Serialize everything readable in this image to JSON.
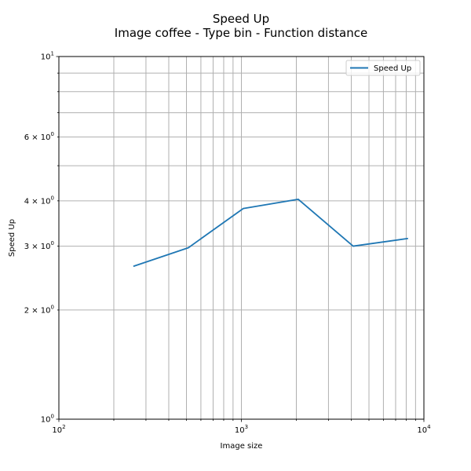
{
  "chart_data": {
    "type": "line",
    "title": "Speed Up",
    "subtitle": "Image coffee - Type bin - Function distance",
    "xlabel": "Image size",
    "ylabel": "Speed Up",
    "xscale": "log",
    "yscale": "log",
    "xlim": [
      100,
      10000
    ],
    "ylim": [
      1,
      10
    ],
    "grid": true,
    "legend_placement": "top-right",
    "x_major_ticks": [
      {
        "base": "10",
        "exp": "2"
      },
      {
        "base": "10",
        "exp": "3"
      },
      {
        "base": "10",
        "exp": "4"
      }
    ],
    "y_major_ticks": [
      {
        "base": "10",
        "exp": "0",
        "value": 1
      },
      {
        "base": "10",
        "exp": "1",
        "value": 10
      }
    ],
    "y_minor_labels": [
      {
        "value": 2,
        "label": "2 × 10",
        "exp": "0"
      },
      {
        "value": 3,
        "label": "3 × 10",
        "exp": "0"
      },
      {
        "value": 4,
        "label": "4 × 10",
        "exp": "0"
      },
      {
        "value": 6,
        "label": "6 × 10",
        "exp": "0"
      }
    ],
    "series": [
      {
        "name": "Speed Up",
        "color": "#1f77b4",
        "x": [
          256,
          512,
          1024,
          2048,
          4096,
          8192
        ],
        "y": [
          2.64,
          2.97,
          3.81,
          4.04,
          3.0,
          3.15
        ]
      }
    ]
  }
}
